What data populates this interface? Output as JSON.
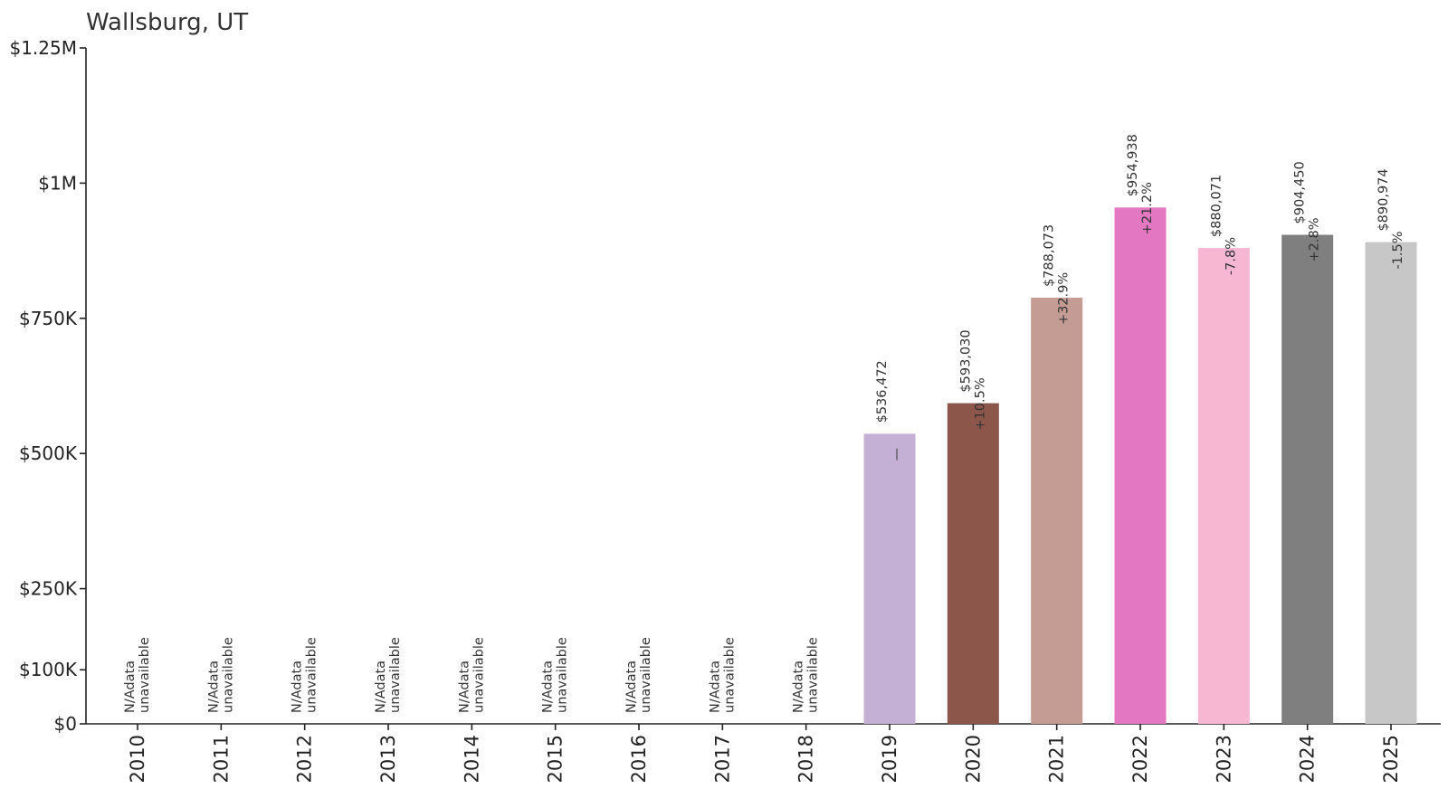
{
  "chart_data": {
    "type": "bar",
    "title": "Wallsburg, UT",
    "xlabel": "",
    "ylabel": "",
    "ylim": [
      0,
      1250000
    ],
    "y_ticks": [
      {
        "value": 0,
        "label": "$0"
      },
      {
        "value": 100000,
        "label": "$100K"
      },
      {
        "value": 250000,
        "label": "$250K"
      },
      {
        "value": 500000,
        "label": "$500K"
      },
      {
        "value": 750000,
        "label": "$750K"
      },
      {
        "value": 1000000,
        "label": "$1M"
      },
      {
        "value": 1250000,
        "label": "$1.25M"
      }
    ],
    "grid": false,
    "legend": "none",
    "categories": [
      "2010",
      "2011",
      "2012",
      "2013",
      "2014",
      "2015",
      "2016",
      "2017",
      "2018",
      "2019",
      "2020",
      "2021",
      "2022",
      "2023",
      "2024",
      "2025"
    ],
    "values": [
      null,
      null,
      null,
      null,
      null,
      null,
      null,
      null,
      null,
      536472,
      593030,
      788073,
      954938,
      880071,
      904450,
      890974
    ],
    "value_labels": [
      "",
      "",
      "",
      "",
      "",
      "",
      "",
      "",
      "",
      "$536,472",
      "$593,030",
      "$788,073",
      "$954,938",
      "$880,071",
      "$904,450",
      "$890,974"
    ],
    "change_labels": [
      "",
      "",
      "",
      "",
      "",
      "",
      "",
      "",
      "",
      "—",
      "+10.5%",
      "+32.9%",
      "+21.2%",
      "-7.8%",
      "+2.8%",
      "-1.5%"
    ],
    "missing_label_1": "N/A",
    "missing_label_2": "data",
    "missing_label_3": "unavailable",
    "colors": [
      "#1f77b4",
      "#ff7f0e",
      "#2ca02c",
      "#d62728",
      "#9467bd",
      "#8c564b",
      "#e377c2",
      "#7f7f7f",
      "#bcbd22",
      "#c5b0d5",
      "#8c564b",
      "#c49c94",
      "#e377c2",
      "#f7b6d2",
      "#7f7f7f",
      "#c7c7c7"
    ]
  }
}
